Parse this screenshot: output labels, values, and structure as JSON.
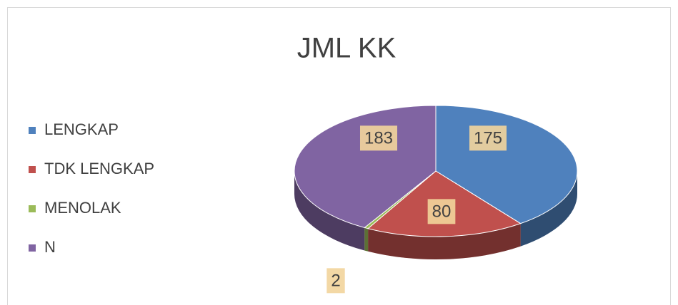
{
  "chart_data": {
    "type": "pie3d",
    "title": "JML KK",
    "categories": [
      "LENGKAP",
      "TDK LENGKAP",
      "MENOLAK",
      "N"
    ],
    "values": [
      175,
      80,
      2,
      183
    ],
    "colors": [
      "#4f81bd",
      "#c0504d",
      "#9bbb59",
      "#8064a2"
    ],
    "legend": "left"
  }
}
